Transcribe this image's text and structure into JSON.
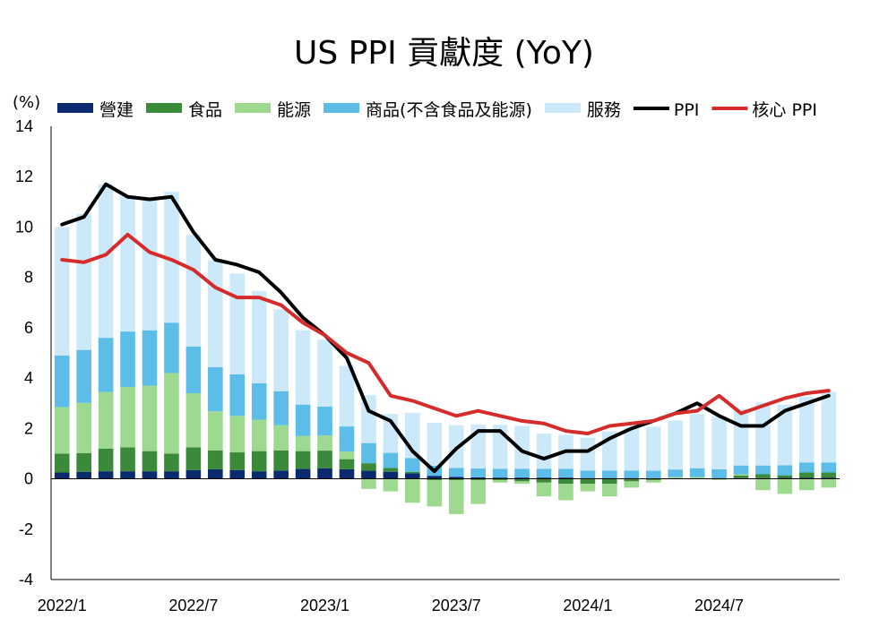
{
  "chart_data": {
    "type": "bar",
    "title": "US PPI 貢獻度 (YoY)",
    "ylabel": "(%)",
    "ylim": [
      -4,
      14
    ],
    "yticks": [
      -4,
      -2,
      0,
      2,
      4,
      6,
      8,
      10,
      12,
      14
    ],
    "x": [
      "2022/1",
      "2022/2",
      "2022/3",
      "2022/4",
      "2022/5",
      "2022/6",
      "2022/7",
      "2022/8",
      "2022/9",
      "2022/10",
      "2022/11",
      "2022/12",
      "2023/1",
      "2023/2",
      "2023/3",
      "2023/4",
      "2023/5",
      "2023/6",
      "2023/7",
      "2023/8",
      "2023/9",
      "2023/10",
      "2023/11",
      "2023/12",
      "2024/1",
      "2024/2",
      "2024/3",
      "2024/4",
      "2024/5",
      "2024/6",
      "2024/7",
      "2024/8",
      "2024/9",
      "2024/10",
      "2024/11",
      "2024/12"
    ],
    "xtick_labels": [
      "2022/1",
      "2022/7",
      "2023/1",
      "2023/7",
      "2024/1",
      "2024/7"
    ],
    "grid": false,
    "legend_position": "top",
    "series": [
      {
        "name": "營建",
        "kind": "bar",
        "color": "#0b2a6e",
        "values": [
          0.25,
          0.27,
          0.3,
          0.3,
          0.3,
          0.3,
          0.35,
          0.38,
          0.35,
          0.3,
          0.33,
          0.4,
          0.42,
          0.38,
          0.32,
          0.28,
          0.22,
          0.12,
          0.08,
          0.06,
          0.05,
          0.05,
          0.05,
          0.05,
          0.03,
          0.03,
          0.03,
          0.02,
          0.02,
          0.02,
          0.03,
          0.03,
          0.03,
          0.04,
          0.05,
          0.05
        ]
      },
      {
        "name": "食品",
        "kind": "bar",
        "color": "#3a8a3a",
        "values": [
          0.75,
          0.75,
          0.9,
          0.95,
          0.8,
          0.7,
          0.9,
          0.75,
          0.7,
          0.8,
          0.8,
          0.7,
          0.7,
          0.4,
          0.3,
          0.15,
          0.05,
          -0.05,
          -0.05,
          -0.05,
          -0.05,
          -0.1,
          -0.15,
          -0.2,
          -0.2,
          -0.2,
          -0.1,
          -0.05,
          0.0,
          0.0,
          0.0,
          0.1,
          0.15,
          0.1,
          0.2,
          0.2
        ]
      },
      {
        "name": "能源",
        "kind": "bar",
        "color": "#9dd98f",
        "values": [
          1.85,
          2.0,
          2.25,
          2.4,
          2.6,
          3.2,
          2.15,
          1.55,
          1.45,
          1.25,
          1.0,
          0.6,
          0.6,
          0.3,
          -0.4,
          -0.5,
          -0.95,
          -1.05,
          -1.35,
          -0.95,
          -0.1,
          -0.1,
          -0.55,
          -0.65,
          -0.3,
          -0.5,
          -0.25,
          -0.1,
          0.05,
          0.05,
          -0.05,
          0.05,
          -0.45,
          -0.6,
          -0.45,
          -0.35
        ]
      },
      {
        "name": "商品(不含食品及能源)",
        "kind": "bar",
        "color": "#5bbde8",
        "values": [
          2.05,
          2.1,
          2.15,
          2.2,
          2.2,
          2.0,
          1.85,
          1.75,
          1.65,
          1.45,
          1.35,
          1.25,
          1.15,
          1.0,
          0.8,
          0.6,
          0.55,
          0.4,
          0.35,
          0.35,
          0.35,
          0.35,
          0.35,
          0.35,
          0.3,
          0.3,
          0.3,
          0.3,
          0.3,
          0.35,
          0.35,
          0.35,
          0.35,
          0.4,
          0.4,
          0.4
        ]
      },
      {
        "name": "服務",
        "kind": "bar",
        "color": "#cce9f9",
        "values": [
          5.1,
          5.4,
          6.1,
          5.4,
          5.2,
          5.2,
          4.45,
          4.25,
          4.0,
          3.65,
          3.25,
          2.95,
          2.65,
          2.4,
          1.9,
          1.55,
          1.8,
          1.7,
          1.7,
          1.75,
          1.75,
          1.7,
          1.4,
          1.35,
          1.3,
          1.55,
          1.7,
          1.75,
          1.95,
          2.15,
          2.1,
          2.25,
          2.5,
          2.4,
          2.6,
          2.8
        ]
      },
      {
        "name": "PPI",
        "kind": "line",
        "color": "#000000",
        "values": [
          10.1,
          10.4,
          11.7,
          11.2,
          11.1,
          11.2,
          9.8,
          8.7,
          8.5,
          8.2,
          7.4,
          6.4,
          5.7,
          4.8,
          2.7,
          2.3,
          1.1,
          0.3,
          1.2,
          1.9,
          1.9,
          1.1,
          0.8,
          1.1,
          1.1,
          1.6,
          2.0,
          2.3,
          2.6,
          3.0,
          2.5,
          2.1,
          2.1,
          2.7,
          3.0,
          3.3
        ]
      },
      {
        "name": "核心 PPI",
        "kind": "line",
        "color": "#d62b2b",
        "values": [
          8.7,
          8.6,
          8.9,
          9.7,
          9.0,
          8.7,
          8.3,
          7.6,
          7.2,
          7.2,
          6.9,
          6.2,
          5.7,
          5.0,
          4.6,
          3.3,
          3.1,
          2.8,
          2.5,
          2.7,
          2.5,
          2.3,
          2.2,
          1.9,
          1.8,
          2.1,
          2.2,
          2.3,
          2.6,
          2.7,
          3.3,
          2.6,
          2.9,
          3.2,
          3.4,
          3.5
        ]
      }
    ]
  }
}
